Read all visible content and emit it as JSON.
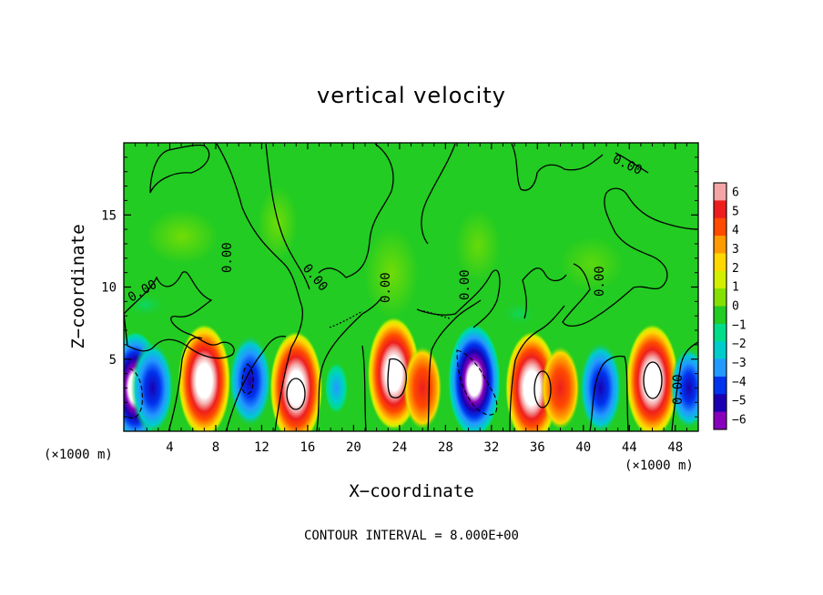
{
  "chart_data": {
    "type": "heatmap",
    "title": "vertical velocity",
    "xlabel": "X−coordinate",
    "ylabel": "Z−coordinate",
    "x_unit_left": "(×1000 m)",
    "x_unit_right": "(×1000 m)",
    "xlim": [
      0,
      50
    ],
    "ylim": [
      0,
      20
    ],
    "x_ticks": [
      "4",
      "8",
      "12",
      "16",
      "20",
      "24",
      "28",
      "32",
      "36",
      "40",
      "44",
      "48"
    ],
    "y_ticks": [
      "5",
      "10",
      "15"
    ],
    "contour_interval_text": "CONTOUR INTERVAL = 8.000E+00",
    "contour_label": "0.00",
    "colorbar": {
      "ticks": [
        "6",
        "5",
        "4",
        "3",
        "2",
        "1",
        "0",
        "−1",
        "−2",
        "−3",
        "−4",
        "−5",
        "−6"
      ],
      "colors": [
        "#f4a6a6",
        "#ee1e1e",
        "#ff4a00",
        "#ff9a00",
        "#ffd800",
        "#d2ef00",
        "#84e000",
        "#22cc22",
        "#00dd88",
        "#00cccc",
        "#2299ff",
        "#0033ee",
        "#1a00b0",
        "#8800bb"
      ]
    },
    "cells": [
      {
        "x": 1.0,
        "z": 3.0,
        "w": -8
      },
      {
        "x": 2.5,
        "z": 3.0,
        "w": -6
      },
      {
        "x": 7.0,
        "z": 3.5,
        "w": 8
      },
      {
        "x": 11.0,
        "z": 3.5,
        "w": -6
      },
      {
        "x": 15.0,
        "z": 3.0,
        "w": 8
      },
      {
        "x": 18.5,
        "z": 3.0,
        "w": -2
      },
      {
        "x": 23.5,
        "z": 4.0,
        "w": 8
      },
      {
        "x": 26.0,
        "z": 3.0,
        "w": 5
      },
      {
        "x": 30.5,
        "z": 3.5,
        "w": -8
      },
      {
        "x": 35.5,
        "z": 3.0,
        "w": 8
      },
      {
        "x": 38.0,
        "z": 3.0,
        "w": 5
      },
      {
        "x": 41.5,
        "z": 3.0,
        "w": -6
      },
      {
        "x": 46.0,
        "z": 3.5,
        "w": 8
      },
      {
        "x": 49.2,
        "z": 3.0,
        "w": -5
      }
    ]
  }
}
